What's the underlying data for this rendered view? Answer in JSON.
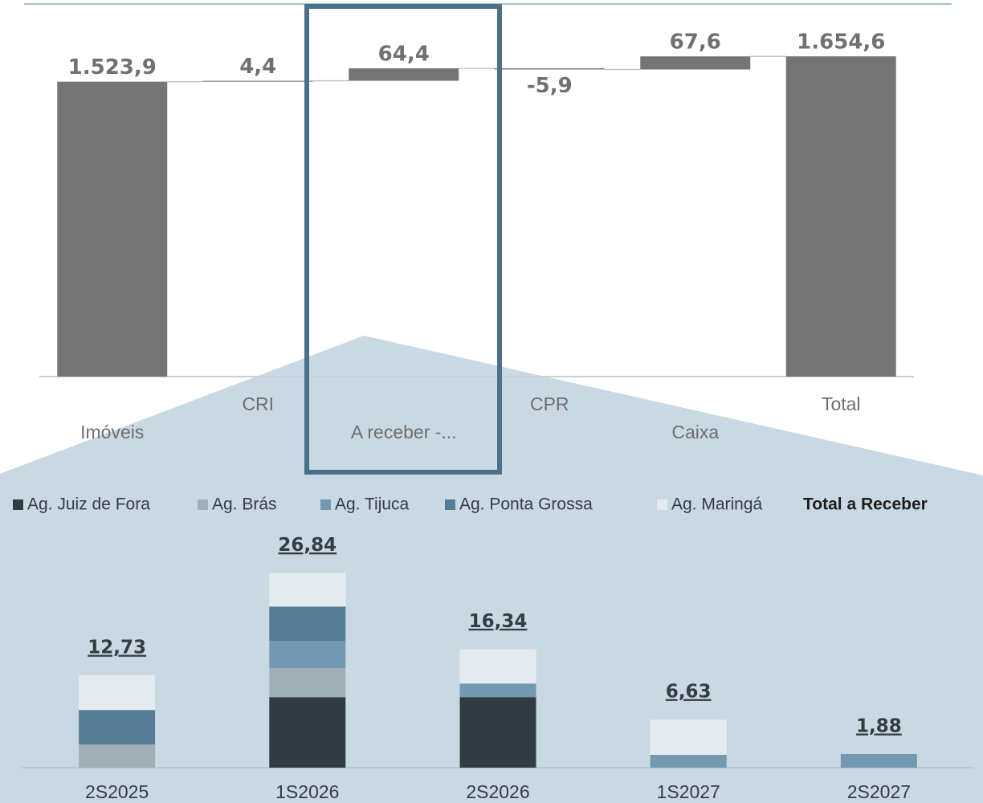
{
  "chart_data": [
    {
      "type": "waterfall",
      "categories": [
        "Imóveis",
        "CRI",
        "A receber -...",
        "CPR",
        "Caixa",
        "Total"
      ],
      "values": [
        1523.9,
        4.4,
        64.4,
        -5.9,
        67.6,
        1654.6
      ],
      "value_labels": [
        "1.523,9",
        "4,4",
        "64,4",
        "-5,9",
        "67,6",
        "1.654,6"
      ],
      "is_total": [
        false,
        false,
        false,
        false,
        false,
        true
      ],
      "color": "#757575",
      "ylim": [
        0,
        1900
      ]
    },
    {
      "type": "stacked_bar",
      "categories": [
        "2S2025",
        "1S2026",
        "2S2026",
        "1S2027",
        "2S2027"
      ],
      "series": [
        {
          "name": "Ag. Juiz de Fora",
          "color": "#313c42",
          "values": [
            0,
            9.72,
            9.72,
            0,
            0
          ]
        },
        {
          "name": "Ag. Brás",
          "color": "#9fafb6",
          "values": [
            3.2,
            3.98,
            0,
            0,
            0
          ]
        },
        {
          "name": "Ag. Tijuca",
          "color": "#7399b0",
          "values": [
            0,
            3.76,
            1.88,
            1.77,
            1.88
          ]
        },
        {
          "name": "Ag. Ponta Grossa",
          "color": "#547c95",
          "values": [
            4.75,
            4.75,
            0,
            0,
            0
          ]
        },
        {
          "name": "Ag. Maringá",
          "color": "#e4ebef",
          "values": [
            4.78,
            4.63,
            4.74,
            4.86,
            0
          ]
        }
      ],
      "totals": {
        "name": "Total a Receber",
        "values": [
          12.73,
          26.84,
          16.34,
          6.63,
          1.88
        ],
        "value_labels": [
          "12,73",
          "26,84",
          "16,34",
          "6,63",
          "1,88"
        ]
      },
      "ylim": [
        0,
        30
      ]
    }
  ]
}
